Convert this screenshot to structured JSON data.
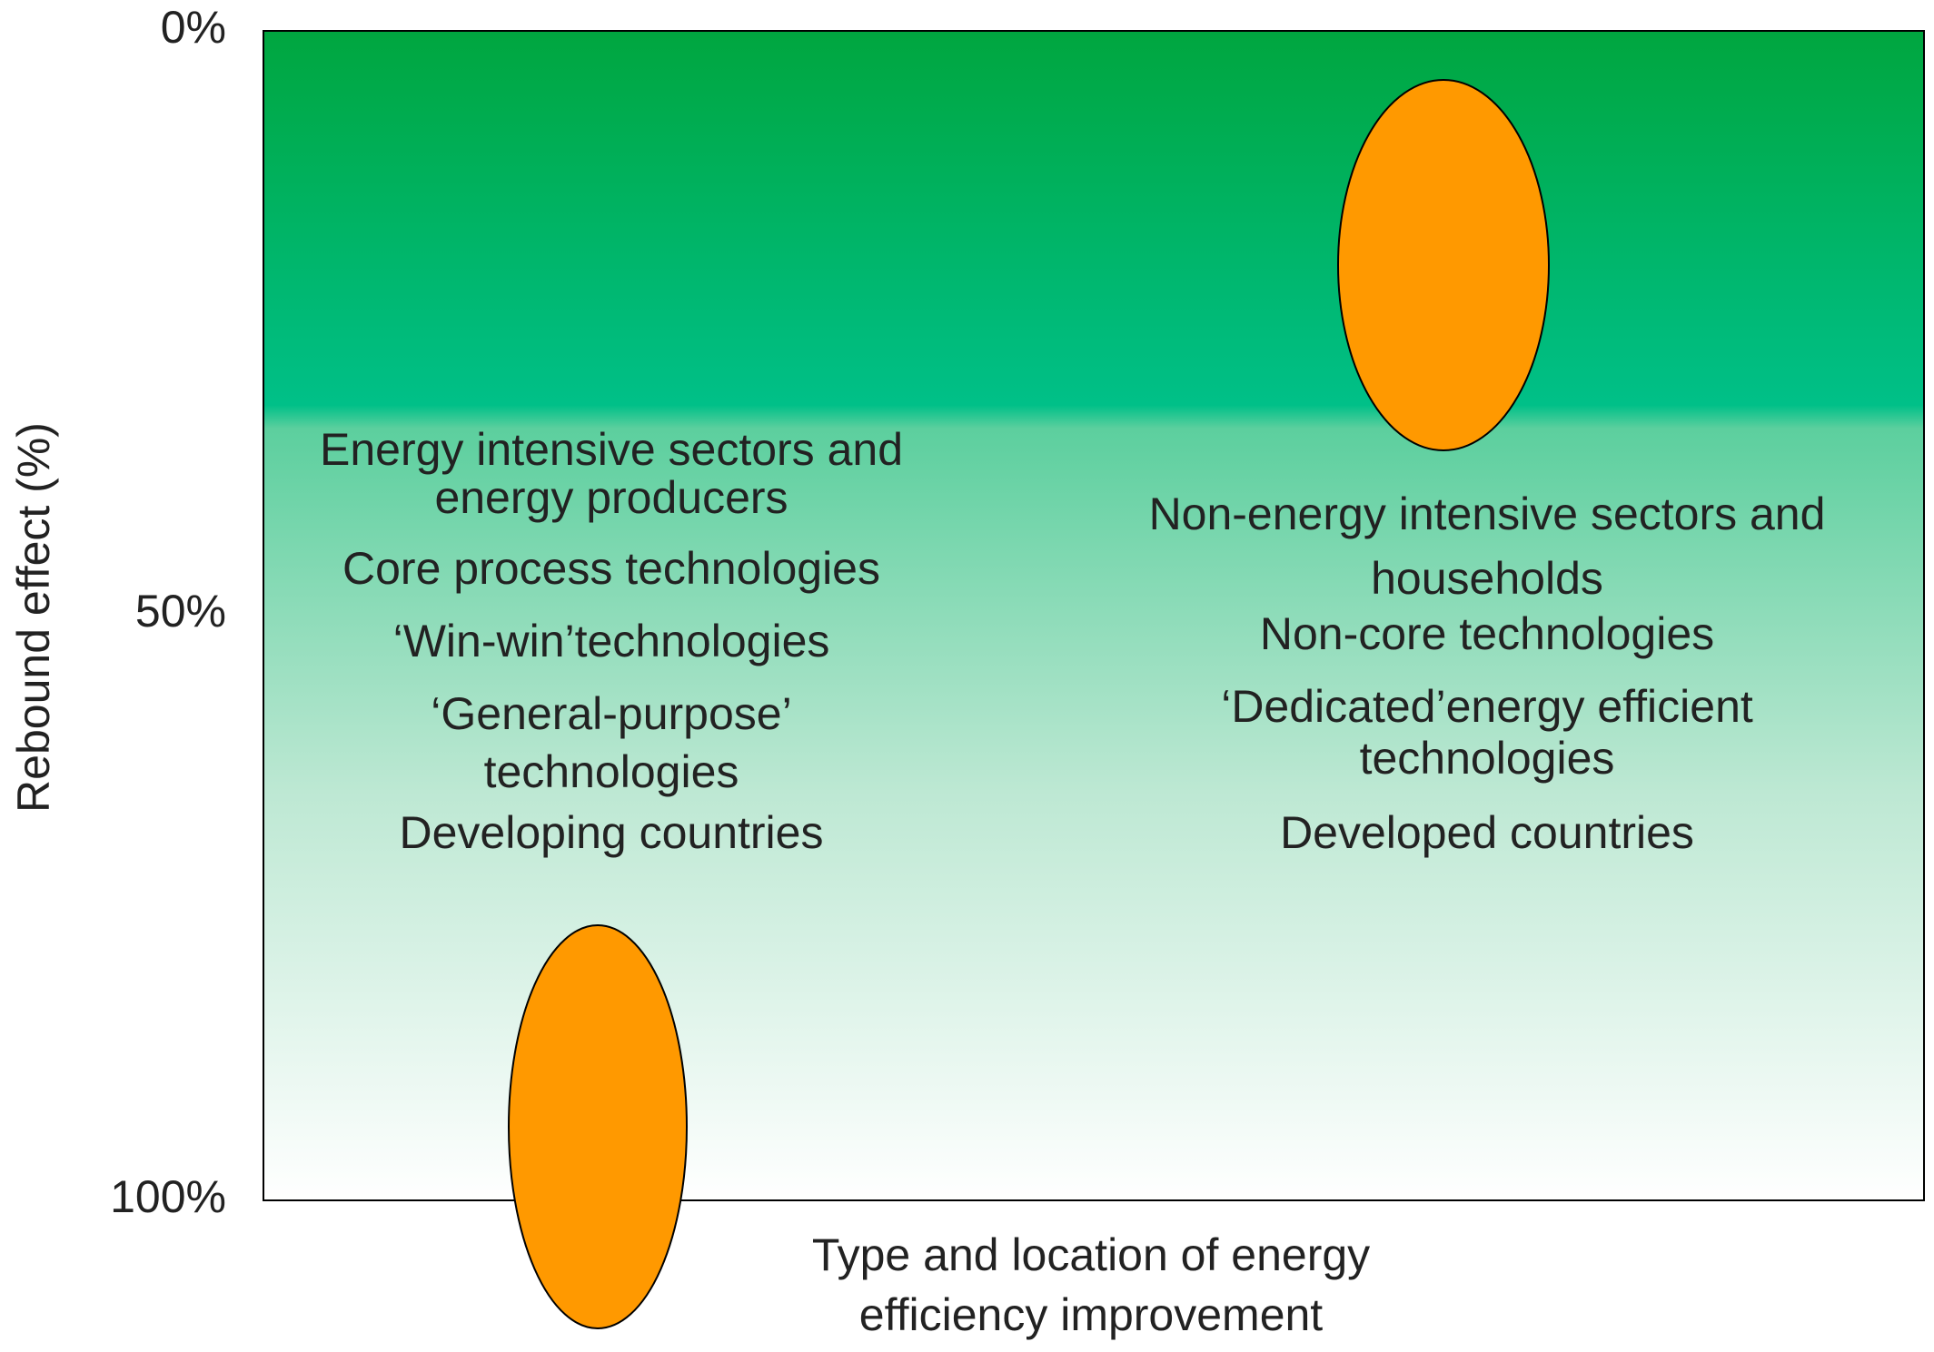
{
  "y_axis": {
    "label": "Rebound effect (%)",
    "ticks": [
      "0%",
      "50%",
      "100%"
    ]
  },
  "x_axis": {
    "label": [
      "Type and location of energy",
      "efficiency improvement"
    ]
  },
  "left_group": {
    "lines": [
      "Energy intensive sectors and",
      "energy producers",
      "Core process technologies",
      "‘Win-win’technologies",
      "‘General-purpose’",
      "technologies",
      "Developing countries"
    ]
  },
  "right_group": {
    "lines": [
      "Non-energy intensive sectors and",
      "households",
      "Non-core technologies",
      "‘Dedicated’energy efficient",
      "technologies",
      "Developed countries"
    ]
  }
}
